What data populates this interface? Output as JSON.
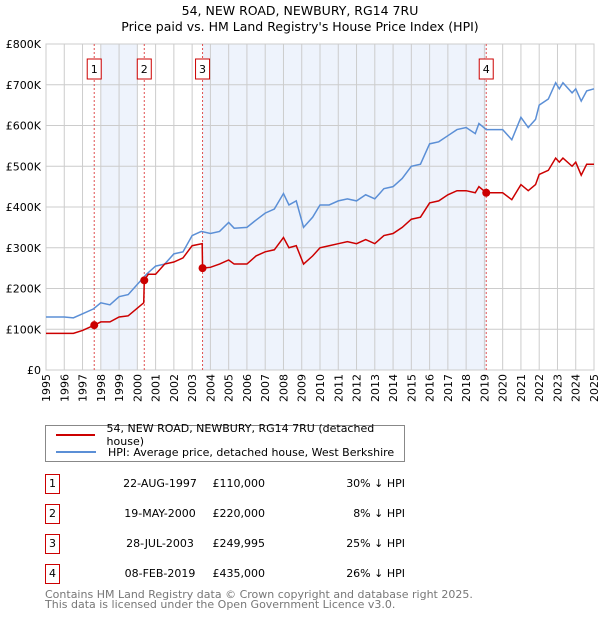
{
  "chart_data": {
    "type": "line",
    "title": "54, NEW ROAD, NEWBURY, RG14 7RU",
    "subtitle": "Price paid vs. HM Land Registry's House Price Index (HPI)",
    "xlim": [
      1995,
      2025
    ],
    "ylim": [
      0,
      800000
    ],
    "x_ticks": [
      "1995",
      "1996",
      "1997",
      "1998",
      "1999",
      "2000",
      "2001",
      "2002",
      "2003",
      "2004",
      "2005",
      "2006",
      "2007",
      "2008",
      "2009",
      "2010",
      "2011",
      "2012",
      "2013",
      "2014",
      "2015",
      "2016",
      "2017",
      "2018",
      "2019",
      "2020",
      "2021",
      "2022",
      "2023",
      "2024",
      "2025"
    ],
    "y_ticks": [
      {
        "v": 0,
        "label": "£0"
      },
      {
        "v": 100000,
        "label": "£100K"
      },
      {
        "v": 200000,
        "label": "£200K"
      },
      {
        "v": 300000,
        "label": "£300K"
      },
      {
        "v": 400000,
        "label": "£400K"
      },
      {
        "v": 500000,
        "label": "£500K"
      },
      {
        "v": 600000,
        "label": "£600K"
      },
      {
        "v": 700000,
        "label": "£700K"
      },
      {
        "v": 800000,
        "label": "£800K"
      }
    ],
    "grid": true,
    "shaded_ranges": [
      [
        1998,
        2000
      ],
      [
        2003.57,
        2019.1
      ]
    ],
    "series": [
      {
        "name": "54, NEW ROAD, NEWBURY, RG14 7RU (detached house)",
        "color": "#cc0000",
        "x": [
          1995,
          1996.5,
          1997,
          1997.64,
          1998,
          1998.5,
          1999,
          1999.5,
          2000.35,
          2000.38,
          2000.6,
          2001,
          2001.5,
          2002,
          2002.5,
          2003,
          2003.55,
          2003.57,
          2004,
          2004.5,
          2005,
          2005.3,
          2006,
          2006.5,
          2007,
          2007.5,
          2008,
          2008.3,
          2008.7,
          2009.1,
          2009.6,
          2010,
          2010.5,
          2011,
          2011.5,
          2012,
          2012.5,
          2013,
          2013.5,
          2014,
          2014.5,
          2015,
          2015.5,
          2016,
          2016.5,
          2017,
          2017.5,
          2018,
          2018.5,
          2018.7,
          2019.1,
          2019.5,
          2020,
          2020.5,
          2021,
          2021.4,
          2021.8,
          2022,
          2022.5,
          2022.9,
          2023.1,
          2023.3,
          2023.8,
          2024,
          2024.3,
          2024.6,
          2025
        ],
        "y": [
          90000,
          90000,
          97000,
          110000,
          118000,
          118000,
          130000,
          133000,
          165000,
          220000,
          235000,
          235000,
          260000,
          265000,
          275000,
          305000,
          310000,
          250000,
          252000,
          260000,
          270000,
          260000,
          260000,
          280000,
          290000,
          295000,
          325000,
          300000,
          305000,
          260000,
          280000,
          300000,
          305000,
          310000,
          315000,
          310000,
          320000,
          310000,
          330000,
          335000,
          350000,
          370000,
          375000,
          410000,
          415000,
          430000,
          440000,
          440000,
          435000,
          450000,
          435000,
          435000,
          435000,
          418000,
          455000,
          440000,
          455000,
          480000,
          490000,
          520000,
          510000,
          520000,
          500000,
          510000,
          478000,
          505000,
          505000
        ]
      },
      {
        "name": "HPI: Average price, detached house, West Berkshire",
        "color": "#5b8fd6",
        "x": [
          1995,
          1996,
          1996.5,
          1997,
          1997.6,
          1998,
          1998.5,
          1999,
          1999.5,
          2000,
          2000.5,
          2001,
          2001.5,
          2002,
          2002.5,
          2003,
          2003.5,
          2004,
          2004.5,
          2005,
          2005.3,
          2006,
          2006.5,
          2007,
          2007.5,
          2008,
          2008.3,
          2008.7,
          2009.1,
          2009.6,
          2010,
          2010.5,
          2011,
          2011.5,
          2012,
          2012.5,
          2013,
          2013.5,
          2014,
          2014.5,
          2015,
          2015.5,
          2016,
          2016.5,
          2017,
          2017.5,
          2018,
          2018.5,
          2018.7,
          2019.1,
          2019.5,
          2020,
          2020.5,
          2021,
          2021.4,
          2021.8,
          2022,
          2022.5,
          2022.9,
          2023.1,
          2023.3,
          2023.8,
          2024,
          2024.3,
          2024.6,
          2025
        ],
        "y": [
          130000,
          130000,
          128000,
          138000,
          150000,
          165000,
          160000,
          180000,
          185000,
          210000,
          235000,
          255000,
          260000,
          285000,
          290000,
          330000,
          340000,
          335000,
          340000,
          362000,
          348000,
          350000,
          368000,
          385000,
          395000,
          433000,
          405000,
          415000,
          350000,
          375000,
          405000,
          405000,
          415000,
          420000,
          415000,
          430000,
          420000,
          445000,
          450000,
          470000,
          500000,
          505000,
          555000,
          560000,
          575000,
          590000,
          595000,
          580000,
          605000,
          590000,
          590000,
          590000,
          565000,
          620000,
          595000,
          615000,
          650000,
          665000,
          705000,
          690000,
          705000,
          680000,
          690000,
          660000,
          685000,
          690000
        ]
      }
    ],
    "sales": [
      {
        "n": "1",
        "x": 1997.64,
        "date": "22-AUG-1997",
        "price": 110000,
        "price_label": "£110,000",
        "hpi": "30% ↓ HPI"
      },
      {
        "n": "2",
        "x": 2000.38,
        "date": "19-MAY-2000",
        "price": 220000,
        "price_label": "£220,000",
        "hpi": "8% ↓ HPI"
      },
      {
        "n": "3",
        "x": 2003.57,
        "date": "28-JUL-2003",
        "price": 249995,
        "price_label": "£249,995",
        "hpi": "25% ↓ HPI"
      },
      {
        "n": "4",
        "x": 2019.1,
        "date": "08-FEB-2019",
        "price": 435000,
        "price_label": "£435,000",
        "hpi": "26% ↓ HPI"
      }
    ]
  },
  "footer": [
    "Contains HM Land Registry data © Crown copyright and database right 2025.",
    "This data is licensed under the Open Government Licence v3.0."
  ]
}
